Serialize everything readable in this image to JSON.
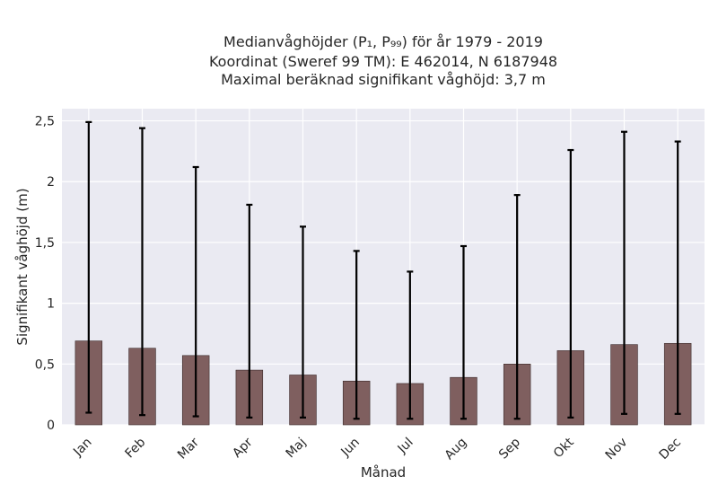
{
  "chart_data": {
    "type": "bar",
    "title_lines": [
      "Medianvåghöjder (P₁, P₉₉) för år 1979 - 2019",
      "Koordinat (Sweref 99 TM): E 462014, N 6187948",
      "Maximal beräknad signifikant våghöjd: 3,7 m"
    ],
    "xlabel": "Månad",
    "ylabel": "Signifikant våghöjd (m)",
    "categories": [
      "Jan",
      "Feb",
      "Mar",
      "Apr",
      "Maj",
      "Jun",
      "Jul",
      "Aug",
      "Sep",
      "Okt",
      "Nov",
      "Dec"
    ],
    "values": [
      0.69,
      0.63,
      0.57,
      0.45,
      0.41,
      0.36,
      0.34,
      0.39,
      0.5,
      0.61,
      0.66,
      0.67
    ],
    "p1": [
      0.1,
      0.08,
      0.07,
      0.06,
      0.06,
      0.05,
      0.05,
      0.05,
      0.05,
      0.06,
      0.09,
      0.09
    ],
    "p99": [
      2.49,
      2.44,
      2.12,
      1.81,
      1.63,
      1.43,
      1.26,
      1.47,
      1.89,
      2.26,
      2.41,
      2.33
    ],
    "ylim": [
      0,
      2.6
    ],
    "yticks": [
      0,
      0.5,
      1,
      1.5,
      2,
      2.5
    ],
    "ytick_labels": [
      "0",
      "0,5",
      "1",
      "1,5",
      "2",
      "2,5"
    ],
    "grid": true,
    "bar_color": "#7f5f5f",
    "errorbar_color": "#000000",
    "plot_background": "#eaeaf2",
    "grid_color": "#ffffff"
  }
}
